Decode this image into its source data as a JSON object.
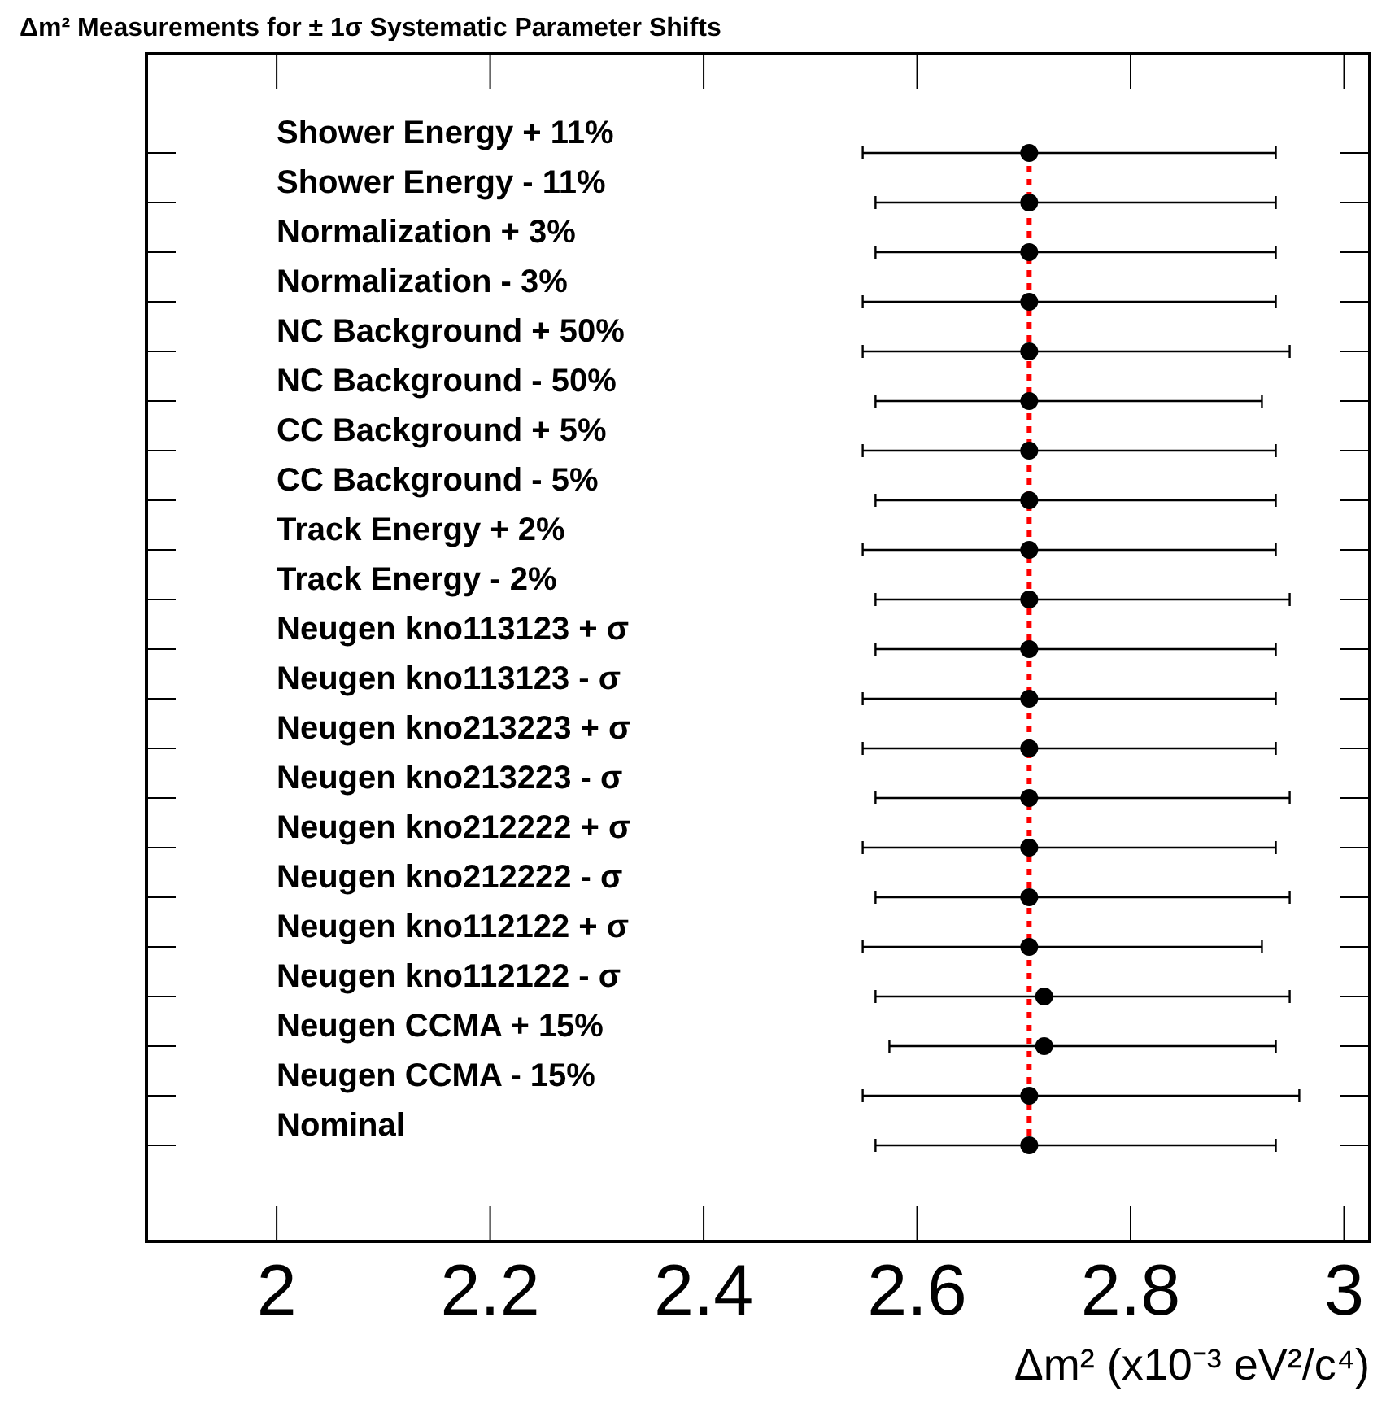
{
  "chart_data": {
    "type": "scatter",
    "orientation": "horizontal",
    "title": "Δm² Measurements for ± 1σ Systematic Parameter Shifts",
    "xlabel": "Δm² (x10⁻³ eV²/c⁴)",
    "categories": [
      "Shower Energy + 11%",
      "Shower Energy - 11%",
      "Normalization + 3%",
      "Normalization - 3%",
      "NC Background + 50%",
      "NC Background - 50%",
      "CC Background + 5%",
      "CC Background - 5%",
      "Track Energy + 2%",
      "Track Energy - 2%",
      "Neugen kno113123 + σ",
      "Neugen kno113123 - σ",
      "Neugen kno213223 + σ",
      "Neugen kno213223 - σ",
      "Neugen kno212222 + σ",
      "Neugen kno212222 - σ",
      "Neugen kno112122 + σ",
      "Neugen kno112122 - σ",
      "Neugen CCMA + 15%",
      "Neugen CCMA - 15%",
      "Nominal"
    ],
    "series": [
      {
        "color": "#000000",
        "values": [
          2.705,
          2.705,
          2.705,
          2.705,
          2.705,
          2.705,
          2.705,
          2.705,
          2.705,
          2.705,
          2.705,
          2.705,
          2.705,
          2.705,
          2.705,
          2.705,
          2.705,
          2.719,
          2.719,
          2.705,
          2.705
        ],
        "errors": [
          [
            2.549,
            2.936
          ],
          [
            2.561,
            2.936
          ],
          [
            2.561,
            2.936
          ],
          [
            2.549,
            2.936
          ],
          [
            2.549,
            2.949
          ],
          [
            2.561,
            2.923
          ],
          [
            2.549,
            2.936
          ],
          [
            2.561,
            2.936
          ],
          [
            2.549,
            2.936
          ],
          [
            2.561,
            2.949
          ],
          [
            2.561,
            2.936
          ],
          [
            2.549,
            2.936
          ],
          [
            2.549,
            2.936
          ],
          [
            2.561,
            2.949
          ],
          [
            2.549,
            2.936
          ],
          [
            2.561,
            2.949
          ],
          [
            2.549,
            2.923
          ],
          [
            2.561,
            2.949
          ],
          [
            2.574,
            2.936
          ],
          [
            2.549,
            2.958
          ],
          [
            2.561,
            2.936
          ]
        ]
      }
    ],
    "xlim": [
      1.878,
      3.024
    ],
    "xticks": [
      2,
      2.2,
      2.4,
      2.6,
      2.8,
      3
    ],
    "ref_lines": [
      {
        "axis": "x",
        "value": 2.705,
        "color": "#ff0000",
        "line_style": "dotted"
      }
    ],
    "marker": "circle"
  }
}
